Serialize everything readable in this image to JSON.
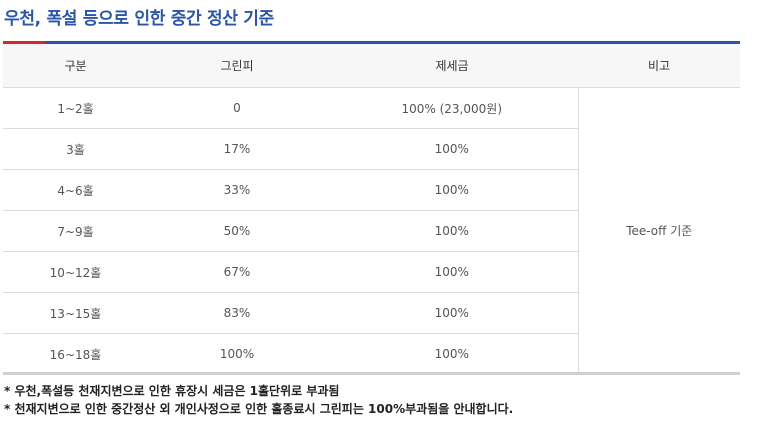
{
  "title": "우천, 폭설 등으로 인한 중간 정산 기준",
  "table": {
    "headers": [
      "구분",
      "그린피",
      "제세금",
      "비고"
    ],
    "rows": [
      {
        "division": "1~2홀",
        "green_fee": "0",
        "tax": "100% (23,000원)"
      },
      {
        "division": "3홀",
        "green_fee": "17%",
        "tax": "100%"
      },
      {
        "division": "4~6홀",
        "green_fee": "33%",
        "tax": "100%"
      },
      {
        "division": "7~9홀",
        "green_fee": "50%",
        "tax": "100%"
      },
      {
        "division": "10~12홀",
        "green_fee": "67%",
        "tax": "100%"
      },
      {
        "division": "13~15홀",
        "green_fee": "83%",
        "tax": "100%"
      },
      {
        "division": "16~18홀",
        "green_fee": "100%",
        "tax": "100%"
      }
    ],
    "note": "Tee-off 기준"
  },
  "footnotes": [
    "* 우천,폭설등 천재지변으로 인한 휴장시 세금은 1홀단위로 부과됨",
    "* 천재지변으로 인한 중간정산 외 개인사정으로 인한 홀종료시 그린피는 100%부과됨을 안내합니다."
  ],
  "colors": {
    "accent_blue": "#2b56a8",
    "accent_red": "#d7262e",
    "header_bg": "#f7f7f7"
  }
}
